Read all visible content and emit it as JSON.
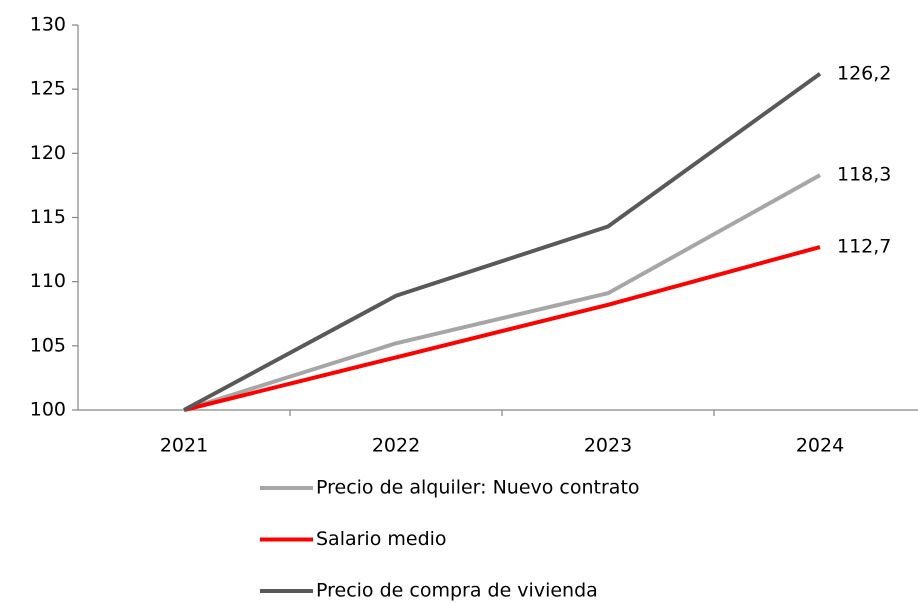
{
  "chart_data": {
    "type": "line",
    "categories": [
      "2021",
      "2022",
      "2023",
      "2024"
    ],
    "series": [
      {
        "name": "Precio de alquiler: Nuevo contrato",
        "color": "#a6a6a6",
        "values": [
          100,
          105.2,
          109.1,
          118.3
        ],
        "value_labels": [
          null,
          null,
          null,
          "118,3"
        ]
      },
      {
        "name": "Salario medio",
        "color": "#ff0000",
        "values": [
          100,
          104.1,
          108.2,
          112.7
        ],
        "value_labels": [
          null,
          null,
          null,
          "112,7"
        ]
      },
      {
        "name": "Precio de compra de vivienda",
        "color": "#595959",
        "values": [
          100,
          108.9,
          114.3,
          126.2
        ],
        "value_labels": [
          null,
          null,
          null,
          "126,2"
        ]
      }
    ],
    "ylim": [
      100,
      130
    ],
    "yticks": [
      100,
      105,
      110,
      115,
      120,
      125,
      130
    ],
    "grid": false,
    "legend": "bottom"
  }
}
